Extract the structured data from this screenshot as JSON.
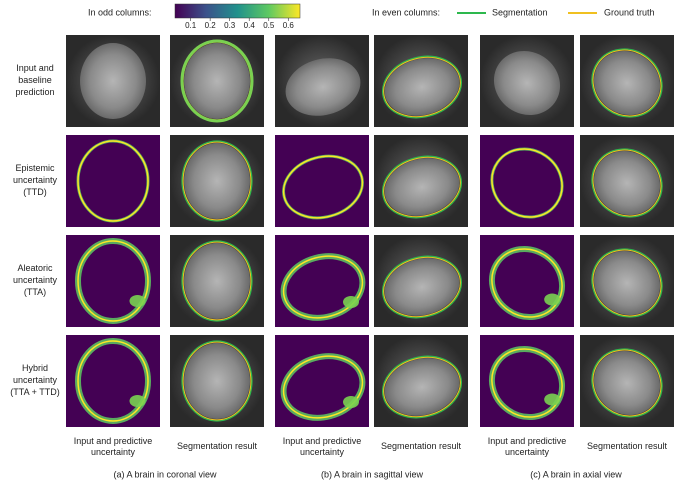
{
  "legend": {
    "odd_label": "In odd columns:",
    "even_label": "In even columns:",
    "colorbar": {
      "range": [
        0.02,
        0.66
      ],
      "ticks": [
        0.1,
        0.2,
        0.3,
        0.4,
        0.5,
        0.6
      ]
    },
    "segmentation": "Segmentation",
    "ground_truth": "Ground truth"
  },
  "row_labels": [
    [
      "Input and",
      "baseline",
      "prediction"
    ],
    [
      "Epistemic",
      "uncertainty",
      "(TTD)"
    ],
    [
      "Aleatoric",
      "uncertainty",
      "(TTA)"
    ],
    [
      "Hybrid",
      "uncertainty",
      "(TTA + TTD)"
    ]
  ],
  "column_captions": [
    [
      "Input and predictive",
      "uncertainty"
    ],
    [
      "Segmentation result"
    ],
    [
      "Input and predictive",
      "uncertainty"
    ],
    [
      "Segmentation result"
    ],
    [
      "Input and predictive",
      "uncertainty"
    ],
    [
      "Segmentation result"
    ]
  ],
  "group_captions": [
    "(a) A brain in coronal view",
    "(b) A brain in sagittal view",
    "(c) A brain in axial view"
  ]
}
